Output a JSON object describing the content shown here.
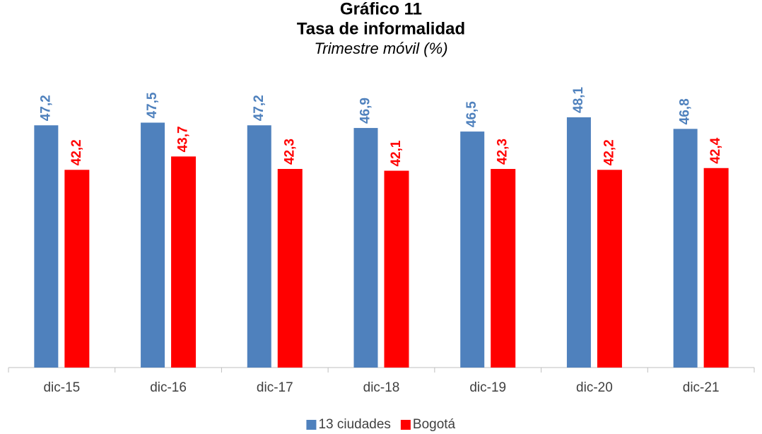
{
  "chart_data": {
    "type": "bar",
    "title": [
      "Gráfico 11",
      "Tasa de informalidad"
    ],
    "subtitle": "Trimestre móvil (%)",
    "categories": [
      "dic-15",
      "dic-16",
      "dic-17",
      "dic-18",
      "dic-19",
      "dic-20",
      "dic-21"
    ],
    "series": [
      {
        "name": "13 ciudades",
        "color": "#4f81bd",
        "values": [
          47.2,
          47.5,
          47.2,
          46.9,
          46.5,
          48.1,
          46.8
        ],
        "value_labels": [
          "47,2",
          "47,5",
          "47,2",
          "46,9",
          "46,5",
          "48,1",
          "46,8"
        ]
      },
      {
        "name": "Bogotá",
        "color": "#ff0000",
        "values": [
          42.2,
          43.7,
          42.3,
          42.1,
          42.3,
          42.2,
          42.4
        ],
        "value_labels": [
          "42,2",
          "43,7",
          "42,3",
          "42,1",
          "42,3",
          "42,2",
          "42,4"
        ]
      }
    ],
    "ylim": [
      20,
      55
    ],
    "legend": "bottom"
  }
}
